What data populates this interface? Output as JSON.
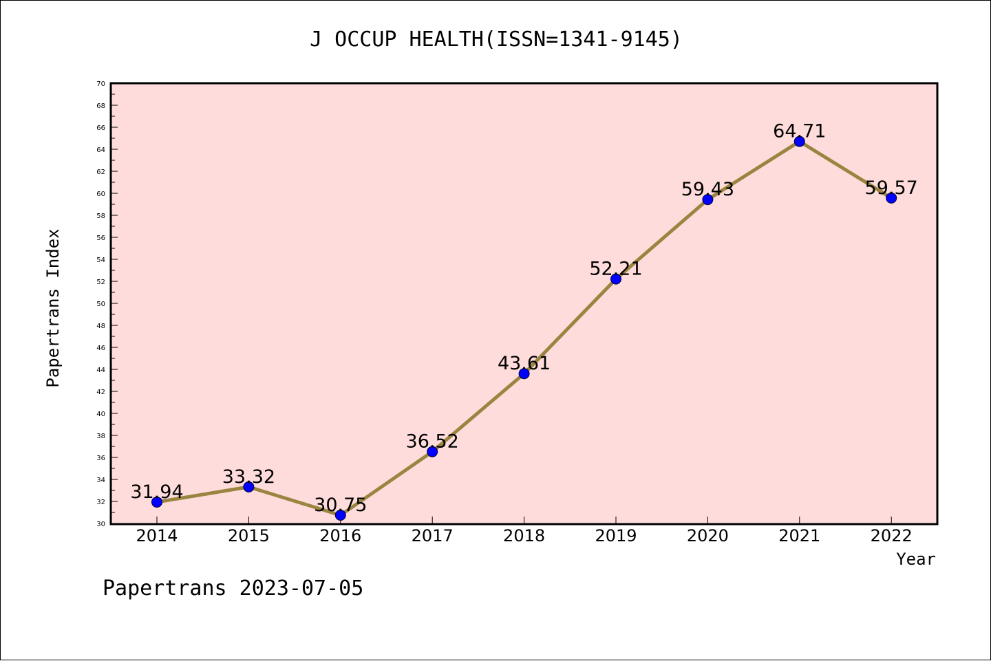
{
  "chart_data": {
    "type": "line",
    "title": "J OCCUP HEALTH(ISSN=1341-9145)",
    "xlabel": "Year",
    "ylabel": "Papertrans Index",
    "categories": [
      "2014",
      "2015",
      "2016",
      "2017",
      "2018",
      "2019",
      "2020",
      "2021",
      "2022"
    ],
    "values": [
      31.94,
      33.32,
      30.75,
      36.52,
      43.61,
      52.21,
      59.43,
      64.71,
      59.57
    ],
    "data_labels": [
      "31.94",
      "33.32",
      "30.75",
      "36.52",
      "43.61",
      "52.21",
      "59.43",
      "64.71",
      "59.57"
    ],
    "ylim": [
      30,
      70
    ],
    "ytick_step": 2,
    "grid": false,
    "colors": {
      "plot_background": "#ffdcdc",
      "line": "#9a8540",
      "marker": "#0000ff",
      "axis": "#000000"
    },
    "footer": "Papertrans 2023-07-05"
  }
}
